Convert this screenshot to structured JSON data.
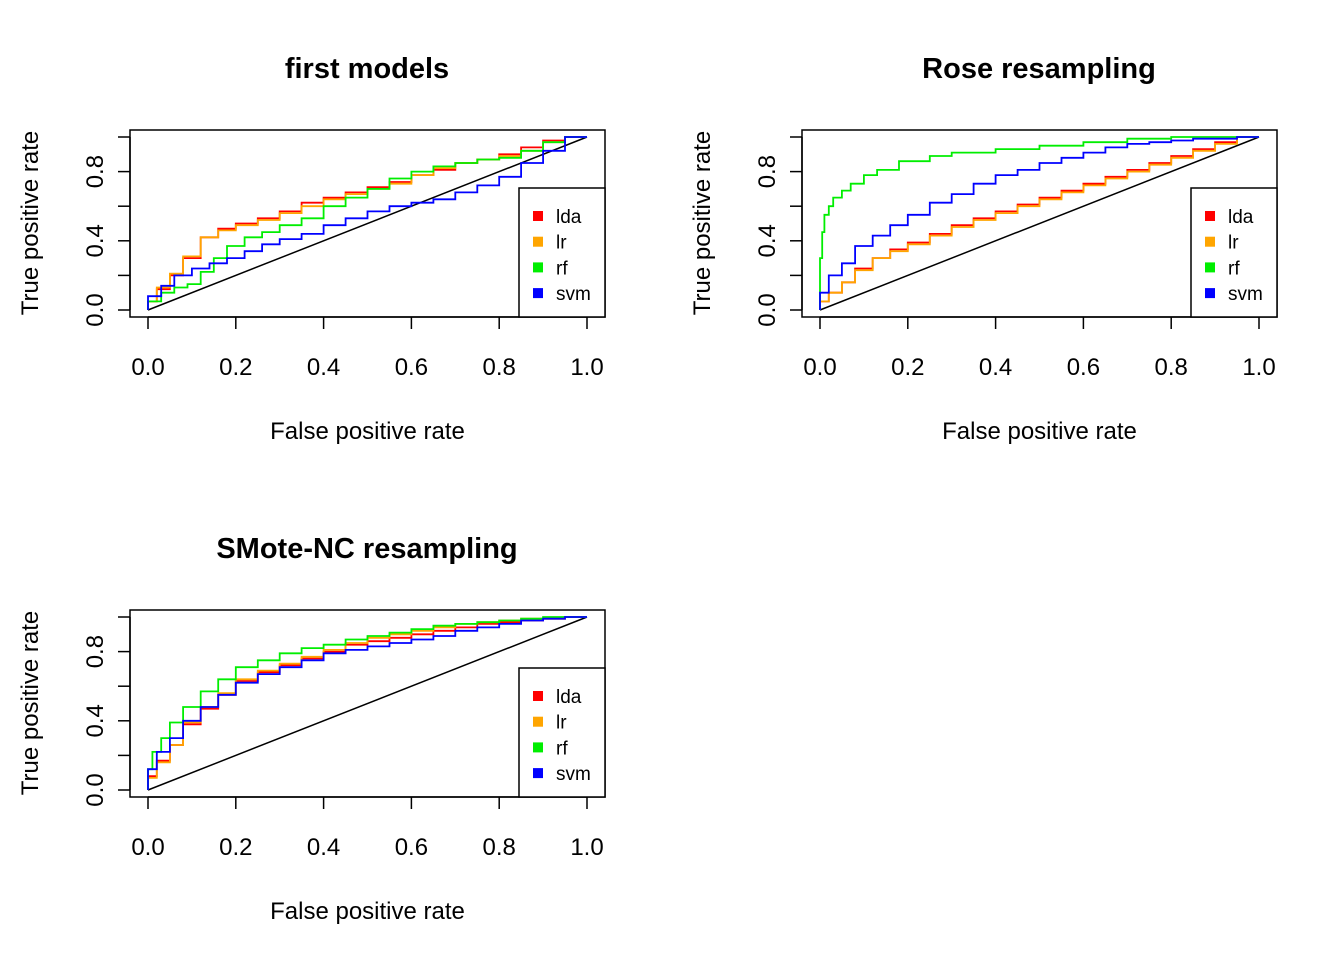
{
  "chart_data": [
    {
      "type": "line",
      "title": "first models",
      "xlabel": "False positive rate",
      "ylabel": "True positive rate",
      "xlim": [
        0,
        1
      ],
      "ylim": [
        0,
        1
      ],
      "x_ticks": [
        "0.0",
        "0.2",
        "0.4",
        "0.6",
        "0.8",
        "1.0"
      ],
      "y_ticks": [
        "0.0",
        "0.4",
        "0.8"
      ],
      "grid": false,
      "legend_position": "right",
      "series": [
        {
          "name": "lda",
          "color": "#ff0000",
          "x": [
            0,
            0.02,
            0.05,
            0.08,
            0.12,
            0.16,
            0.2,
            0.25,
            0.3,
            0.35,
            0.4,
            0.45,
            0.5,
            0.55,
            0.6,
            0.65,
            0.7,
            0.75,
            0.8,
            0.85,
            0.9,
            0.95,
            1.0
          ],
          "y": [
            0,
            0.05,
            0.12,
            0.2,
            0.3,
            0.42,
            0.47,
            0.5,
            0.53,
            0.57,
            0.62,
            0.65,
            0.68,
            0.71,
            0.74,
            0.78,
            0.81,
            0.85,
            0.87,
            0.9,
            0.94,
            0.98,
            1.0
          ]
        },
        {
          "name": "lr",
          "color": "#ffa500",
          "x": [
            0,
            0.02,
            0.05,
            0.08,
            0.12,
            0.16,
            0.2,
            0.25,
            0.3,
            0.35,
            0.4,
            0.45,
            0.5,
            0.55,
            0.6,
            0.65,
            0.7,
            0.75,
            0.8,
            0.85,
            0.9,
            0.95,
            1.0
          ],
          "y": [
            0,
            0.05,
            0.13,
            0.21,
            0.31,
            0.42,
            0.46,
            0.49,
            0.52,
            0.56,
            0.6,
            0.64,
            0.67,
            0.7,
            0.73,
            0.78,
            0.82,
            0.85,
            0.87,
            0.89,
            0.92,
            0.97,
            1.0
          ]
        },
        {
          "name": "rf",
          "color": "#00ee00",
          "x": [
            0,
            0.03,
            0.06,
            0.09,
            0.12,
            0.15,
            0.18,
            0.22,
            0.26,
            0.3,
            0.35,
            0.4,
            0.45,
            0.5,
            0.55,
            0.6,
            0.65,
            0.7,
            0.75,
            0.8,
            0.85,
            0.9,
            0.95,
            1.0
          ],
          "y": [
            0,
            0.05,
            0.1,
            0.13,
            0.15,
            0.22,
            0.3,
            0.37,
            0.42,
            0.45,
            0.49,
            0.53,
            0.6,
            0.65,
            0.7,
            0.76,
            0.8,
            0.83,
            0.85,
            0.87,
            0.88,
            0.92,
            0.97,
            1.0
          ]
        },
        {
          "name": "svm",
          "color": "#0000ff",
          "x": [
            0,
            0.03,
            0.06,
            0.1,
            0.14,
            0.18,
            0.22,
            0.26,
            0.3,
            0.35,
            0.4,
            0.45,
            0.5,
            0.55,
            0.6,
            0.65,
            0.7,
            0.75,
            0.8,
            0.85,
            0.9,
            0.95,
            1.0
          ],
          "y": [
            0,
            0.08,
            0.14,
            0.2,
            0.24,
            0.27,
            0.3,
            0.34,
            0.38,
            0.41,
            0.44,
            0.49,
            0.53,
            0.57,
            0.6,
            0.62,
            0.64,
            0.68,
            0.72,
            0.77,
            0.85,
            0.92,
            1.0
          ]
        }
      ]
    },
    {
      "type": "line",
      "title": "Rose resampling",
      "xlabel": "False positive rate",
      "ylabel": "True positive rate",
      "xlim": [
        0,
        1
      ],
      "ylim": [
        0,
        1
      ],
      "x_ticks": [
        "0.0",
        "0.2",
        "0.4",
        "0.6",
        "0.8",
        "1.0"
      ],
      "y_ticks": [
        "0.0",
        "0.4",
        "0.8"
      ],
      "grid": false,
      "legend_position": "right",
      "series": [
        {
          "name": "lda",
          "color": "#ff0000",
          "x": [
            0,
            0.02,
            0.05,
            0.08,
            0.12,
            0.16,
            0.2,
            0.25,
            0.3,
            0.35,
            0.4,
            0.45,
            0.5,
            0.55,
            0.6,
            0.65,
            0.7,
            0.75,
            0.8,
            0.85,
            0.9,
            0.95,
            1.0
          ],
          "y": [
            0,
            0.05,
            0.1,
            0.16,
            0.24,
            0.3,
            0.35,
            0.39,
            0.44,
            0.49,
            0.53,
            0.57,
            0.61,
            0.65,
            0.69,
            0.73,
            0.77,
            0.81,
            0.85,
            0.89,
            0.93,
            0.97,
            1.0
          ]
        },
        {
          "name": "lr",
          "color": "#ffa500",
          "x": [
            0,
            0.02,
            0.05,
            0.08,
            0.12,
            0.16,
            0.2,
            0.25,
            0.3,
            0.35,
            0.4,
            0.45,
            0.5,
            0.55,
            0.6,
            0.65,
            0.7,
            0.75,
            0.8,
            0.85,
            0.9,
            0.95,
            1.0
          ],
          "y": [
            0,
            0.05,
            0.1,
            0.16,
            0.23,
            0.3,
            0.34,
            0.38,
            0.43,
            0.48,
            0.52,
            0.56,
            0.6,
            0.64,
            0.68,
            0.72,
            0.76,
            0.8,
            0.84,
            0.88,
            0.92,
            0.96,
            1.0
          ]
        },
        {
          "name": "rf",
          "color": "#00ee00",
          "x": [
            0,
            0.005,
            0.01,
            0.02,
            0.03,
            0.05,
            0.07,
            0.1,
            0.13,
            0.18,
            0.25,
            0.3,
            0.4,
            0.5,
            0.6,
            0.7,
            0.8,
            0.9,
            1.0
          ],
          "y": [
            0,
            0.3,
            0.45,
            0.55,
            0.6,
            0.65,
            0.69,
            0.73,
            0.78,
            0.81,
            0.86,
            0.89,
            0.91,
            0.93,
            0.95,
            0.97,
            0.99,
            1.0,
            1.0
          ]
        },
        {
          "name": "svm",
          "color": "#0000ff",
          "x": [
            0,
            0.02,
            0.05,
            0.08,
            0.12,
            0.16,
            0.2,
            0.25,
            0.3,
            0.35,
            0.4,
            0.45,
            0.5,
            0.55,
            0.6,
            0.65,
            0.7,
            0.75,
            0.8,
            0.85,
            0.9,
            0.95,
            1.0
          ],
          "y": [
            0,
            0.1,
            0.2,
            0.27,
            0.37,
            0.43,
            0.49,
            0.55,
            0.62,
            0.67,
            0.73,
            0.78,
            0.81,
            0.85,
            0.88,
            0.91,
            0.94,
            0.96,
            0.97,
            0.98,
            0.99,
            0.99,
            1.0
          ]
        }
      ]
    },
    {
      "type": "line",
      "title": "SMote-NC resampling",
      "xlabel": "False positive rate",
      "ylabel": "True positive rate",
      "xlim": [
        0,
        1
      ],
      "ylim": [
        0,
        1
      ],
      "x_ticks": [
        "0.0",
        "0.2",
        "0.4",
        "0.6",
        "0.8",
        "1.0"
      ],
      "y_ticks": [
        "0.0",
        "0.4",
        "0.8"
      ],
      "grid": false,
      "legend_position": "right",
      "series": [
        {
          "name": "lda",
          "color": "#ff0000",
          "x": [
            0,
            0.02,
            0.05,
            0.08,
            0.12,
            0.16,
            0.2,
            0.25,
            0.3,
            0.35,
            0.4,
            0.45,
            0.5,
            0.55,
            0.6,
            0.65,
            0.7,
            0.75,
            0.8,
            0.85,
            0.9,
            0.95,
            1.0
          ],
          "y": [
            0,
            0.08,
            0.17,
            0.26,
            0.38,
            0.47,
            0.55,
            0.63,
            0.68,
            0.72,
            0.76,
            0.8,
            0.84,
            0.86,
            0.88,
            0.9,
            0.92,
            0.94,
            0.96,
            0.97,
            0.98,
            0.99,
            1.0
          ]
        },
        {
          "name": "lr",
          "color": "#ffa500",
          "x": [
            0,
            0.02,
            0.05,
            0.08,
            0.12,
            0.16,
            0.2,
            0.25,
            0.3,
            0.35,
            0.4,
            0.45,
            0.5,
            0.55,
            0.6,
            0.65,
            0.7,
            0.75,
            0.8,
            0.85,
            0.9,
            0.95,
            1.0
          ],
          "y": [
            0,
            0.07,
            0.16,
            0.26,
            0.39,
            0.48,
            0.56,
            0.64,
            0.69,
            0.73,
            0.77,
            0.81,
            0.85,
            0.88,
            0.9,
            0.92,
            0.94,
            0.96,
            0.97,
            0.98,
            0.99,
            0.99,
            1.0
          ]
        },
        {
          "name": "rf",
          "color": "#00ee00",
          "x": [
            0,
            0.01,
            0.03,
            0.05,
            0.08,
            0.12,
            0.16,
            0.2,
            0.25,
            0.3,
            0.35,
            0.4,
            0.45,
            0.5,
            0.55,
            0.6,
            0.65,
            0.7,
            0.75,
            0.8,
            0.85,
            0.9,
            0.95,
            1.0
          ],
          "y": [
            0,
            0.12,
            0.22,
            0.3,
            0.39,
            0.48,
            0.57,
            0.64,
            0.71,
            0.75,
            0.79,
            0.82,
            0.84,
            0.87,
            0.89,
            0.91,
            0.93,
            0.95,
            0.96,
            0.97,
            0.98,
            0.99,
            1.0,
            1.0
          ]
        },
        {
          "name": "svm",
          "color": "#0000ff",
          "x": [
            0,
            0.02,
            0.05,
            0.08,
            0.12,
            0.16,
            0.2,
            0.25,
            0.3,
            0.35,
            0.4,
            0.45,
            0.5,
            0.55,
            0.6,
            0.65,
            0.7,
            0.75,
            0.8,
            0.85,
            0.9,
            0.95,
            1.0
          ],
          "y": [
            0,
            0.12,
            0.22,
            0.3,
            0.4,
            0.48,
            0.55,
            0.62,
            0.67,
            0.71,
            0.75,
            0.79,
            0.81,
            0.83,
            0.85,
            0.87,
            0.89,
            0.92,
            0.94,
            0.96,
            0.98,
            0.99,
            1.0
          ]
        }
      ]
    }
  ]
}
